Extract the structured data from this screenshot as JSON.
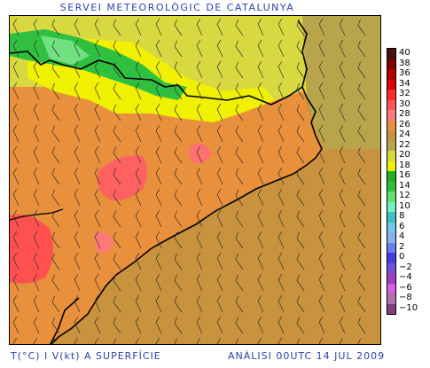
{
  "header": {
    "title": "SERVEI METEOROLÒGIC DE CATALUNYA"
  },
  "footer": {
    "left": "T(°C) I V(kt) A SUPERFÍCIE",
    "right": "ANÀLISI 00UTC 14 JUL 2009"
  },
  "legend": {
    "values": [
      "40",
      "38",
      "36",
      "34",
      "32",
      "30",
      "28",
      "26",
      "24",
      "22",
      "20",
      "18",
      "16",
      "14",
      "12",
      "10",
      "8",
      "6",
      "4",
      "2",
      "0",
      "−2",
      "−4",
      "−6",
      "−8",
      "−10"
    ],
    "colors": [
      "#4a0f0f",
      "#800000",
      "#b00000",
      "#e00000",
      "#ff2a2a",
      "#ff5555",
      "#ff7a7a",
      "#e8903c",
      "#c8923e",
      "#b8a44a",
      "#d8d840",
      "#f0f000",
      "#20b020",
      "#30c040",
      "#60e070",
      "#70f0c0",
      "#40c0c0",
      "#70c8e8",
      "#8ab0e8",
      "#6a80f0",
      "#4040e0",
      "#7050d8",
      "#a040c0",
      "#d060e0",
      "#b070b0",
      "#804080"
    ]
  },
  "map": {
    "description_colors": {
      "sea": "#c8923e",
      "land_warm": "#e8903c",
      "land_hot": "#ff5a5a",
      "cool": "#d8d840",
      "cold": "#30c040"
    }
  }
}
